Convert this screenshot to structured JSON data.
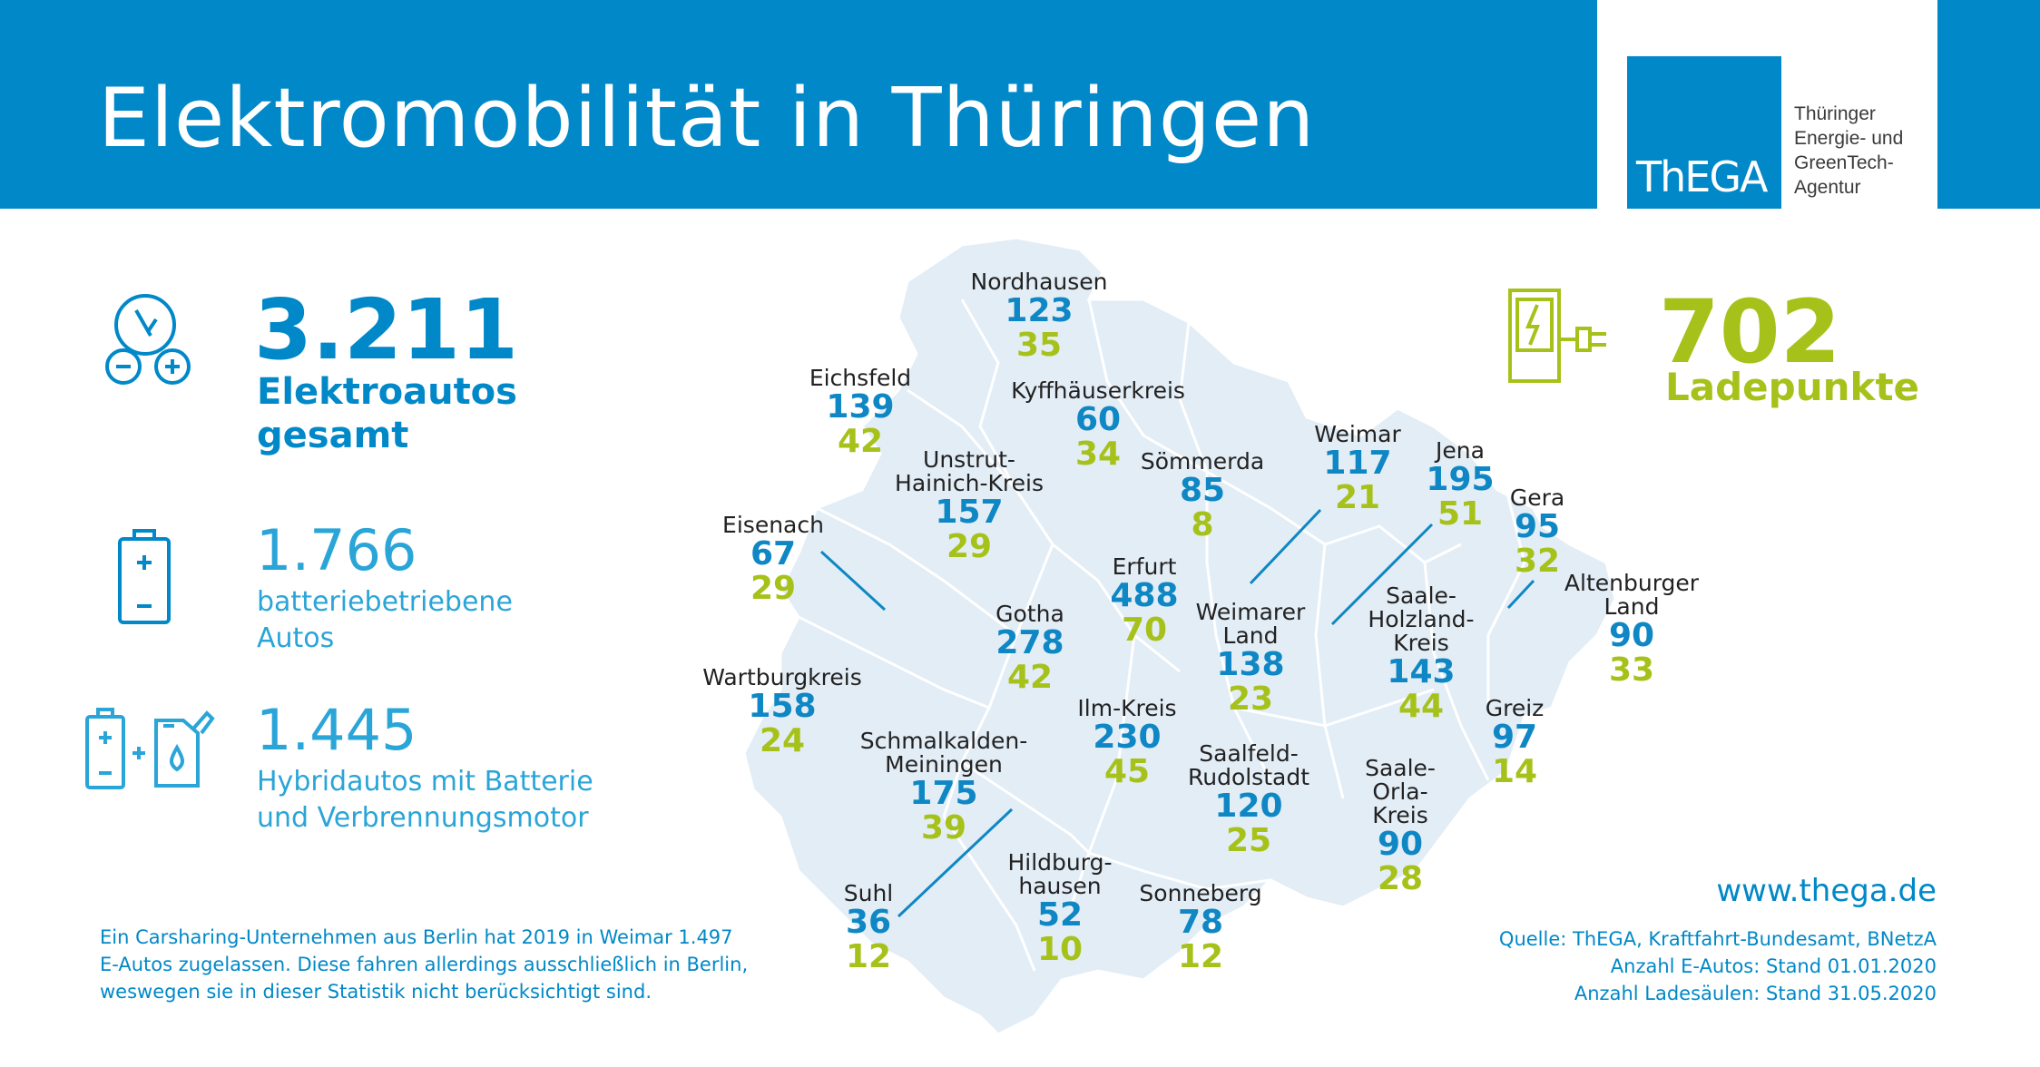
{
  "header": {
    "title": "Elektromobilität in Thüringen"
  },
  "logo": {
    "text": "ThEGA",
    "agency_lines": [
      "Thüringer",
      "Energie- und",
      "GreenTech-",
      "Agentur"
    ]
  },
  "total": {
    "value": "3.211",
    "label_lines": [
      "Elektroautos",
      "gesamt"
    ]
  },
  "battery": {
    "value": "1.766",
    "label_lines": [
      "batteriebetriebene",
      "Autos"
    ]
  },
  "hybrid": {
    "value": "1.445",
    "label_lines": [
      "Hybridautos mit Batterie",
      "und Verbrennungsmotor"
    ]
  },
  "charging": {
    "value": "702",
    "label": "Ladepunkte"
  },
  "regions": [
    {
      "name_lines": [
        "Nordhausen"
      ],
      "cars": "123",
      "charge": "35"
    },
    {
      "name_lines": [
        "Eichsfeld"
      ],
      "cars": "139",
      "charge": "42"
    },
    {
      "name_lines": [
        "Kyffhäuserkreis"
      ],
      "cars": "60",
      "charge": "34"
    },
    {
      "name_lines": [
        "Unstrut-",
        "Hainich-Kreis"
      ],
      "cars": "157",
      "charge": "29"
    },
    {
      "name_lines": [
        "Sömmerda"
      ],
      "cars": "85",
      "charge": "8"
    },
    {
      "name_lines": [
        "Weimar"
      ],
      "cars": "117",
      "charge": "21"
    },
    {
      "name_lines": [
        "Jena"
      ],
      "cars": "195",
      "charge": "51"
    },
    {
      "name_lines": [
        "Gera"
      ],
      "cars": "95",
      "charge": "32"
    },
    {
      "name_lines": [
        "Eisenach"
      ],
      "cars": "67",
      "charge": "29"
    },
    {
      "name_lines": [
        "Erfurt"
      ],
      "cars": "488",
      "charge": "70"
    },
    {
      "name_lines": [
        "Gotha"
      ],
      "cars": "278",
      "charge": "42"
    },
    {
      "name_lines": [
        "Weimarer",
        "Land"
      ],
      "cars": "138",
      "charge": "23"
    },
    {
      "name_lines": [
        "Saale-",
        "Holzland-",
        "Kreis"
      ],
      "cars": "143",
      "charge": "44"
    },
    {
      "name_lines": [
        "Altenburger",
        "Land"
      ],
      "cars": "90",
      "charge": "33"
    },
    {
      "name_lines": [
        "Wartburgkreis"
      ],
      "cars": "158",
      "charge": "24"
    },
    {
      "name_lines": [
        "Ilm-Kreis"
      ],
      "cars": "230",
      "charge": "45"
    },
    {
      "name_lines": [
        "Schmalkalden-",
        "Meiningen"
      ],
      "cars": "175",
      "charge": "39"
    },
    {
      "name_lines": [
        "Saalfeld-",
        "Rudolstadt"
      ],
      "cars": "120",
      "charge": "25"
    },
    {
      "name_lines": [
        "Saale-",
        "Orla-",
        "Kreis"
      ],
      "cars": "90",
      "charge": "28"
    },
    {
      "name_lines": [
        "Greiz"
      ],
      "cars": "97",
      "charge": "14"
    },
    {
      "name_lines": [
        "Suhl"
      ],
      "cars": "36",
      "charge": "12"
    },
    {
      "name_lines": [
        "Hildburg-",
        "hausen"
      ],
      "cars": "52",
      "charge": "10"
    },
    {
      "name_lines": [
        "Sonneberg"
      ],
      "cars": "78",
      "charge": "12"
    }
  ],
  "footnote": "Ein Carsharing-Unternehmen aus Berlin hat 2019 in Weimar 1.497 E-Autos zugelassen. Diese fahren allerdings ausschließlich in Berlin, weswegen sie in dieser Statistik nicht berücksichtigt sind.",
  "website": "www.thega.de",
  "sources": [
    "Quelle: ThEGA, Kraftfahrt-Bundesamt, BNetzA",
    "Anzahl E-Autos: Stand 01.01.2020",
    "Anzahl Ladesäulen: Stand 31.05.2020"
  ],
  "colors": {
    "brand_blue": "#0088c8",
    "green": "#a6c21a",
    "map_fill": "#e3edf6"
  }
}
